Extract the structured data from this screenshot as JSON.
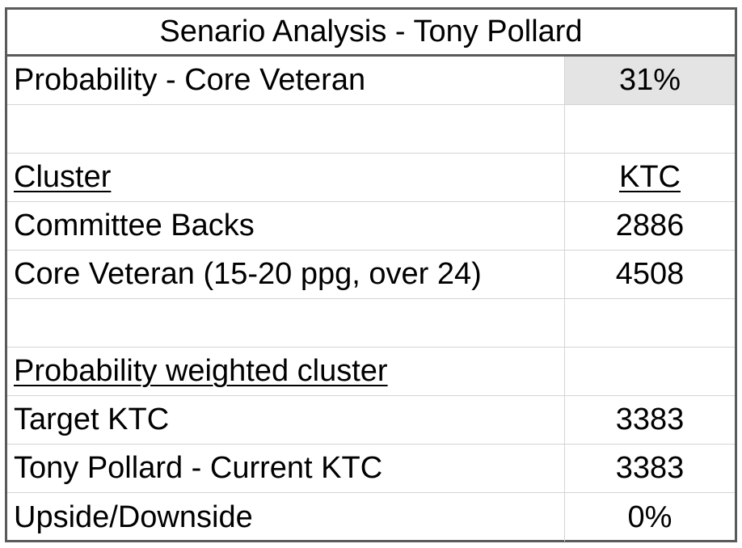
{
  "title": "Senario Analysis - Tony Pollard",
  "rows": [
    {
      "label": "Probability - Core Veteran",
      "value": "31%"
    },
    {
      "label": "",
      "value": ""
    },
    {
      "label": "Cluster",
      "value": "KTC"
    },
    {
      "label": "Committee Backs",
      "value": "2886"
    },
    {
      "label": "Core Veteran (15-20 ppg, over 24)",
      "value": "4508"
    },
    {
      "label": "",
      "value": ""
    },
    {
      "label": "Probability weighted cluster",
      "value": ""
    },
    {
      "label": "Target KTC",
      "value": "3383"
    },
    {
      "label": "Tony Pollard - Current KTC",
      "value": "3383"
    },
    {
      "label": "Upside/Downside",
      "value": "0%"
    }
  ]
}
